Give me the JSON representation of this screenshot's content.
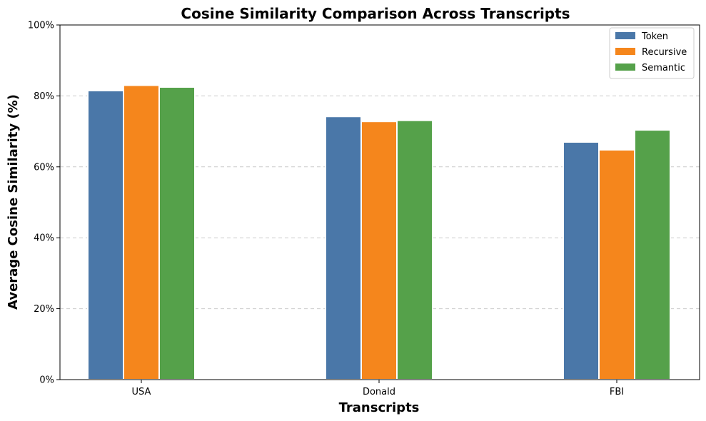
{
  "chart_data": {
    "type": "bar",
    "title": "Cosine Similarity Comparison Across Transcripts",
    "xlabel": "Transcripts",
    "ylabel": "Average Cosine Similarity (%)",
    "categories": [
      "USA",
      "Donald",
      "FBI"
    ],
    "series": [
      {
        "name": "Token",
        "color": "#4a77a8",
        "values": [
          81.5,
          74.2,
          67.0
        ]
      },
      {
        "name": "Recursive",
        "color": "#f5861c",
        "values": [
          83.0,
          72.8,
          64.8
        ]
      },
      {
        "name": "Semantic",
        "color": "#55a14a",
        "values": [
          82.5,
          73.1,
          70.4
        ]
      }
    ],
    "ylim": [
      0,
      100
    ],
    "yticks": [
      0,
      20,
      40,
      60,
      80,
      100
    ],
    "ytick_labels": [
      "0%",
      "20%",
      "40%",
      "60%",
      "80%",
      "100%"
    ],
    "grid": "horizontal dashed",
    "legend_position": "top-right"
  }
}
